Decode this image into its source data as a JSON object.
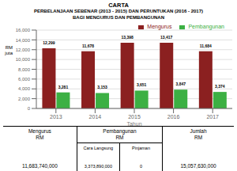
{
  "chart_data": {
    "type": "bar",
    "title": "CARTA",
    "subtitle": [
      "PERBELANJAAN SEBENAR (2013 - 2015) DAN PERUNTUKAN (2016 - 2017)",
      "BAGI MENGURUS DAN PEMBANGUNAN"
    ],
    "x_label": "Tahun",
    "y_label": "RM\njuta",
    "categories": [
      "2013",
      "2014",
      "2015",
      "2016",
      "2017"
    ],
    "series": [
      {
        "name": "Mengurus",
        "color": "#8B2020",
        "values": [
          12299,
          11678,
          13398,
          13417,
          11684
        ],
        "value_labels": [
          "12,299",
          "11,678",
          "13,398",
          "13,417",
          "11,684"
        ]
      },
      {
        "name": "Pembangunan",
        "color": "#3CB043",
        "values": [
          3281,
          3153,
          3651,
          3847,
          3374
        ],
        "value_labels": [
          "3,281",
          "3,153",
          "3,651",
          "3,847",
          "3,374"
        ]
      }
    ],
    "ylim": [
      0,
      16000
    ],
    "yticks": [
      0,
      {
        "value": 2000,
        "label": "2,000"
      },
      {
        "value": 4000,
        "label": "4,000"
      },
      {
        "value": 6000,
        "label": "6,000"
      },
      {
        "value": 8000,
        "label": "8,000"
      },
      {
        "value": 10000,
        "label": "10,000"
      },
      {
        "value": 12000,
        "label": "12,000"
      },
      {
        "value": 14000,
        "label": "14,000"
      },
      {
        "value": 16000,
        "label": "16,000"
      }
    ],
    "grid": true,
    "legend": "upper right",
    "data_labels": true,
    "annotations": [
      "Mengurus",
      "RM",
      "11,683,740,000",
      "Pembangunan",
      "RM",
      "Cara Langsung",
      "Pinjaman",
      "3,373,890,000",
      "0",
      "Jumlah",
      "RM",
      "15,057,630,000"
    ]
  }
}
